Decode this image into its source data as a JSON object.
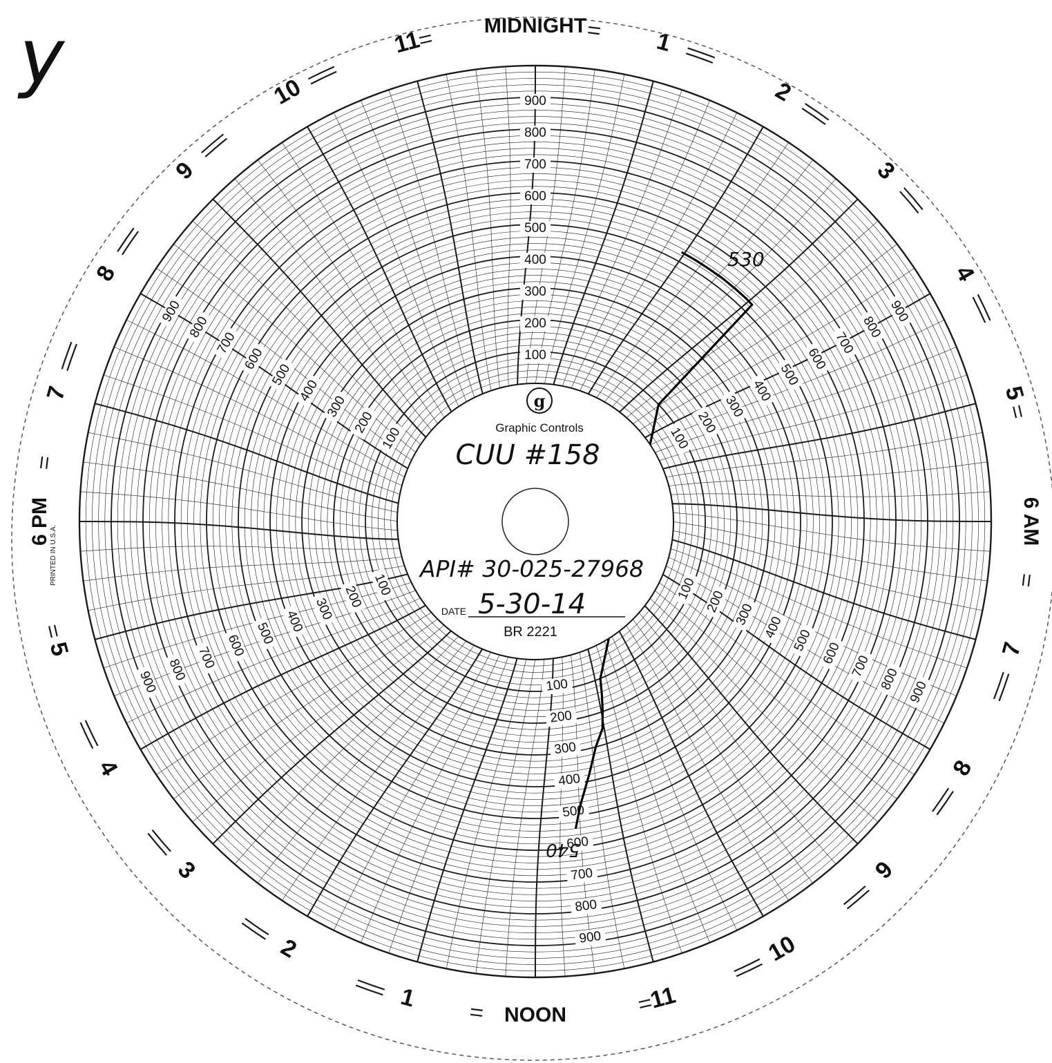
{
  "chart_data": {
    "type": "line",
    "subtype": "circular-recorder-chart",
    "brand": "Graphic Controls",
    "printed_note": "PRINTED IN U.S.A.",
    "chart_number": "BR 2221",
    "date_label": "DATE",
    "handwritten": {
      "well": "CUU #158",
      "api": "API# 30-025-27968",
      "date": "5-30-14",
      "start_reading": "530",
      "end_reading": "540",
      "corner_mark": "y"
    },
    "hour_labels": [
      "MIDNIGHT",
      "1",
      "2",
      "3",
      "4",
      "5",
      "6 AM",
      "7",
      "8",
      "9",
      "10",
      "11",
      "NOON",
      "1",
      "2",
      "3",
      "4",
      "5",
      "6 PM",
      "7",
      "8",
      "9",
      "10",
      "11"
    ],
    "ring_labels": [
      "100",
      "200",
      "300",
      "400",
      "500",
      "600",
      "700",
      "800",
      "900"
    ],
    "rlim": [
      0,
      1000
    ],
    "theta_unit": "hours from midnight, clockwise",
    "grid": true,
    "series": [
      {
        "name": "",
        "x": [
          1.9,
          2.1,
          2.3,
          2.5,
          2.7,
          2.9,
          3.0,
          3.1,
          10.5,
          10.6,
          10.7,
          10.8,
          11.0,
          11.2,
          11.4,
          11.5
        ],
        "y": [
          530,
          530,
          530,
          531,
          531,
          531,
          530,
          100,
          100,
          150,
          200,
          250,
          300,
          380,
          470,
          540
        ]
      }
    ]
  }
}
